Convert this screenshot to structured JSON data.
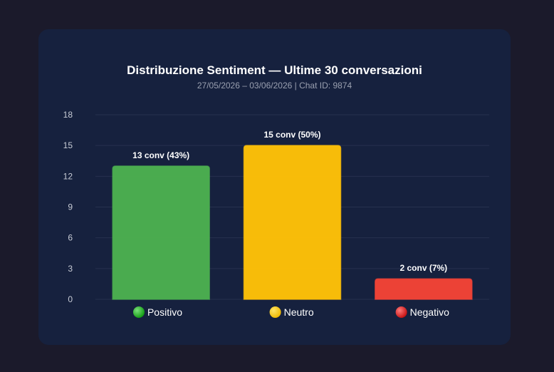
{
  "chart_data": {
    "type": "bar",
    "title": "Distribuzione Sentiment — Ultime 30 conversazioni",
    "subtitle": "27/05/2026 – 03/06/2026 | Chat ID: 9874",
    "categories": [
      "Positivo",
      "Neutro",
      "Negativo"
    ],
    "category_icons": [
      "green-circle-icon",
      "yellow-circle-icon",
      "red-circle-icon"
    ],
    "values": [
      13,
      15,
      2
    ],
    "data_labels": [
      "13 conv (43%)",
      "15 conv (50%)",
      "2 conv (7%)"
    ],
    "colors": [
      "#4caf50",
      "#ffc107",
      "#f44336"
    ],
    "ylim": [
      0,
      18
    ],
    "yticks": [
      0,
      3,
      6,
      9,
      12,
      15,
      18
    ],
    "grid": true,
    "xlabel": "",
    "ylabel": ""
  }
}
